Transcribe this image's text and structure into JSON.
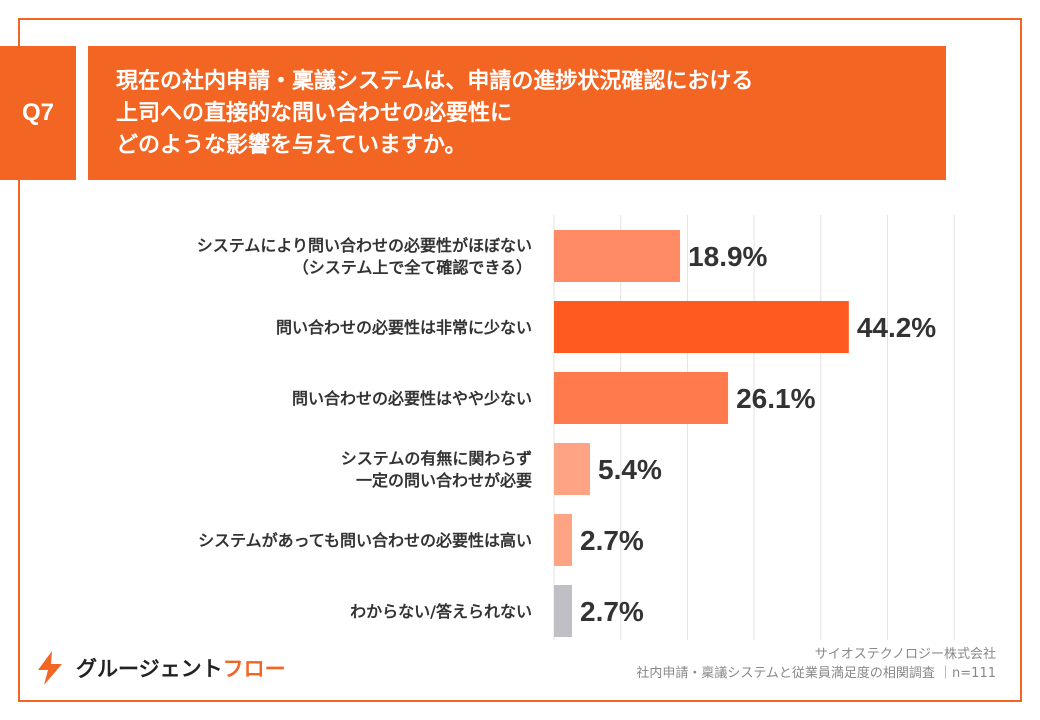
{
  "question": {
    "badge": "Q7",
    "lines": [
      "現在の社内申請・稟議システムは、申請の進捗状況確認における",
      "上司への直接的な問い合わせの必要性に",
      "どのような影響を与えていますか。"
    ]
  },
  "chart_data": {
    "type": "bar",
    "orientation": "horizontal",
    "categories": [
      [
        "システムにより問い合わせの必要性がほぼない",
        "（システム上で全て確認できる）"
      ],
      [
        "問い合わせの必要性は非常に少ない"
      ],
      [
        "問い合わせの必要性はやや少ない"
      ],
      [
        "システムの有無に関わらず",
        "一定の問い合わせが必要"
      ],
      [
        "システムがあっても問い合わせの必要性は高い"
      ],
      [
        "わからない/答えられない"
      ]
    ],
    "values": [
      18.9,
      44.2,
      26.1,
      5.4,
      2.7,
      2.7
    ],
    "value_labels": [
      "18.9%",
      "44.2%",
      "26.1%",
      "5.4%",
      "2.7%",
      "2.7%"
    ],
    "colors": [
      "#ff8a66",
      "#ff5a1f",
      "#ff7a4d",
      "#ffa385",
      "#ffa385",
      "#c0bfc6"
    ],
    "xlim": [
      0,
      60
    ],
    "grid_step": 10,
    "grid": true
  },
  "logo": {
    "text_main": "グルージェント",
    "text_accent": "フロー"
  },
  "source": {
    "company": "サイオステクノロジー株式会社",
    "survey": "社内申請・稟議システムと従業員満足度の相関調査 ｜n=111"
  },
  "colors": {
    "accent": "#f26522"
  }
}
